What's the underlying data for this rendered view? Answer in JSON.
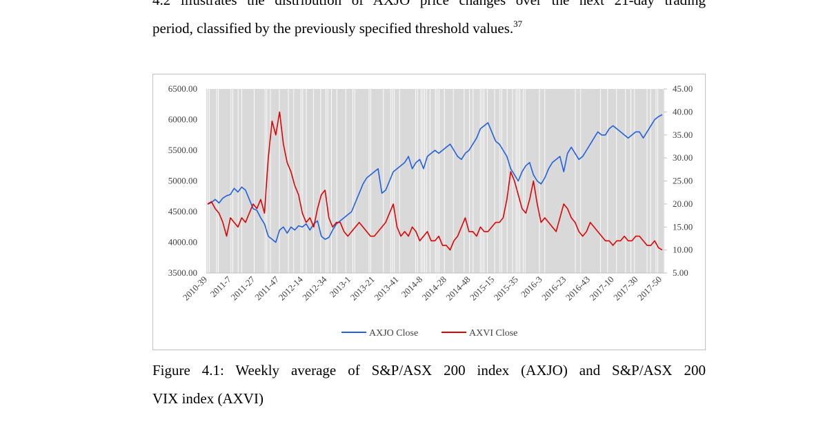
{
  "paragraph": {
    "line1": "4.2 illustrates the distribution of AXJO price changes over the next 21-day trading",
    "line2_text": "period, classified by the previously specified threshold values.",
    "footnote": "37"
  },
  "caption": {
    "line1": "Figure 4.1: Weekly average of S&P/ASX 200 index (AXJO) and S&P/ASX 200",
    "line2": "VIX index (AXVI)"
  },
  "chart_data": {
    "type": "line",
    "legend_position": "bottom",
    "grid": false,
    "x_tick_labels": [
      "2010-39",
      "2011-7",
      "2011-27",
      "2011-47",
      "2012-14",
      "2012-34",
      "2013-1",
      "2013-21",
      "2013-41",
      "2014-8",
      "2014-28",
      "2014-48",
      "2015-15",
      "2015-35",
      "2016-3",
      "2016-23",
      "2016-43",
      "2017-10",
      "2017-30",
      "2017-50"
    ],
    "y_left": {
      "ylim": [
        3500,
        6500
      ],
      "ticks": [
        "3500.00",
        "4000.00",
        "4500.00",
        "5000.00",
        "5500.00",
        "6000.00",
        "6500.00"
      ]
    },
    "y_right": {
      "ylim": [
        5,
        45
      ],
      "ticks": [
        "5.00",
        "10.00",
        "15.00",
        "20.00",
        "25.00",
        "30.00",
        "35.00",
        "40.00",
        "45.00"
      ]
    },
    "series": [
      {
        "name": "AXJO Close",
        "axis": "left",
        "color": "#1f5fe0",
        "values": [
          4620,
          4650,
          4700,
          4640,
          4720,
          4760,
          4780,
          4880,
          4820,
          4900,
          4850,
          4700,
          4550,
          4520,
          4400,
          4300,
          4100,
          4050,
          4000,
          4200,
          4250,
          4150,
          4250,
          4200,
          4270,
          4250,
          4300,
          4200,
          4300,
          4350,
          4100,
          4050,
          4080,
          4200,
          4300,
          4350,
          4400,
          4450,
          4500,
          4650,
          4800,
          4950,
          5050,
          5100,
          5150,
          5200,
          4800,
          4850,
          5000,
          5150,
          5200,
          5250,
          5300,
          5400,
          5200,
          5300,
          5350,
          5200,
          5400,
          5450,
          5500,
          5450,
          5500,
          5550,
          5600,
          5500,
          5400,
          5350,
          5450,
          5500,
          5600,
          5700,
          5850,
          5900,
          5950,
          5800,
          5650,
          5600,
          5500,
          5400,
          5200,
          5100,
          5000,
          5150,
          5250,
          5300,
          5100,
          5000,
          4950,
          5050,
          5200,
          5300,
          5350,
          5400,
          5150,
          5450,
          5550,
          5450,
          5350,
          5400,
          5500,
          5600,
          5700,
          5800,
          5750,
          5750,
          5850,
          5900,
          5850,
          5800,
          5750,
          5700,
          5750,
          5800,
          5800,
          5700,
          5800,
          5900,
          6000,
          6050,
          6080
        ]
      },
      {
        "name": "AXVI Close",
        "axis": "right",
        "color": "#e00000",
        "values": [
          20,
          20.5,
          19,
          18,
          16,
          13,
          17,
          16,
          15,
          17,
          16,
          18,
          20,
          19,
          21,
          18,
          30,
          38,
          35,
          40,
          33,
          29,
          27,
          24,
          22,
          18,
          16,
          17,
          15,
          19,
          22,
          23,
          17,
          15,
          16,
          16,
          14,
          13,
          14,
          15,
          16,
          15,
          14,
          13,
          13,
          14,
          15,
          16,
          18,
          20,
          15,
          13,
          14,
          13,
          15,
          14,
          12,
          13,
          14,
          12,
          12,
          13,
          11,
          11,
          10,
          12,
          13,
          15,
          17,
          14,
          14,
          13,
          15,
          14,
          14,
          15,
          16,
          16,
          17,
          21,
          27,
          25,
          22,
          19,
          18,
          21,
          25,
          20,
          16,
          17,
          16,
          15,
          14,
          17,
          20,
          19,
          17,
          16,
          14,
          13,
          14,
          16,
          15,
          14,
          13,
          12,
          12,
          11,
          12,
          12,
          13,
          12,
          12,
          13,
          13,
          12,
          11,
          11,
          12,
          10.5,
          10
        ]
      }
    ]
  }
}
